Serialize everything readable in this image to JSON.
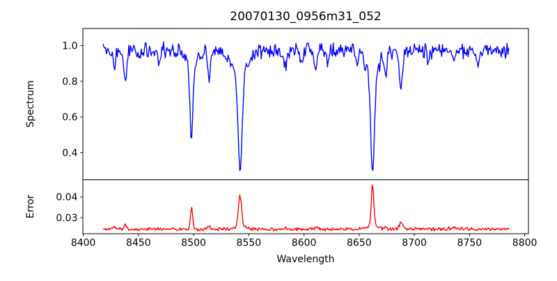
{
  "title": "20070130_0956m31_052",
  "colors": {
    "spectrum_line": "#0000ff",
    "error_line": "#ff0000",
    "axis": "#000000",
    "background": "#ffffff"
  },
  "chart_data": [
    {
      "type": "line",
      "name": "spectrum",
      "title": "20070130_0956m31_052",
      "xlabel": "Wavelength",
      "ylabel": "Spectrum",
      "color": "#0000ff",
      "grid": false,
      "legend": null,
      "xlim": [
        8399.6,
        8803.4
      ],
      "ylim": [
        0.248,
        1.095
      ],
      "xticks": [
        8400,
        8450,
        8500,
        8550,
        8600,
        8650,
        8700,
        8750,
        8800
      ],
      "xtick_labels": [
        "8400",
        "8450",
        "8500",
        "8550",
        "8600",
        "8650",
        "8700",
        "8750",
        "8800"
      ],
      "show_xtick_labels": false,
      "yticks": [
        0.4,
        0.6,
        0.8,
        1.0
      ],
      "ytick_labels": [
        "0.4",
        "0.6",
        "0.8",
        "1.0"
      ],
      "series_generator": {
        "x_start": 8418,
        "x_end": 8786,
        "x_step": 0.75,
        "seed": 3,
        "base_level": 0.97,
        "noise_amp": 0.055,
        "feature_sign": -1,
        "features": [
          {
            "center": 8428,
            "amplitude": 0.1,
            "sigma": 1.2
          },
          {
            "center": 8438,
            "amplitude": 0.17,
            "sigma": 1.3
          },
          {
            "center": 8451,
            "amplitude": 0.05,
            "sigma": 1.0
          },
          {
            "center": 8468,
            "amplitude": 0.08,
            "sigma": 1.2
          },
          {
            "center": 8498.02,
            "amplitude": 0.425,
            "sigma": 1.3
          },
          {
            "center": 8498.02,
            "amplitude": 0.075,
            "sigma": 5.0
          },
          {
            "center": 8514,
            "amplitude": 0.16,
            "sigma": 1.3
          },
          {
            "center": 8542.09,
            "amplitude": 0.55,
            "sigma": 1.8
          },
          {
            "center": 8542.09,
            "amplitude": 0.13,
            "sigma": 7.0
          },
          {
            "center": 8583,
            "amplitude": 0.1,
            "sigma": 1.2
          },
          {
            "center": 8598,
            "amplitude": 0.06,
            "sigma": 1.0
          },
          {
            "center": 8611,
            "amplitude": 0.1,
            "sigma": 1.2
          },
          {
            "center": 8621,
            "amplitude": 0.07,
            "sigma": 1.0
          },
          {
            "center": 8648,
            "amplitude": 0.06,
            "sigma": 1.0
          },
          {
            "center": 8662.14,
            "amplitude": 0.555,
            "sigma": 1.6
          },
          {
            "center": 8662.14,
            "amplitude": 0.13,
            "sigma": 6.0
          },
          {
            "center": 8674,
            "amplitude": 0.12,
            "sigma": 1.2
          },
          {
            "center": 8688,
            "amplitude": 0.2,
            "sigma": 1.6
          },
          {
            "center": 8713,
            "amplitude": 0.06,
            "sigma": 1.0
          },
          {
            "center": 8736,
            "amplitude": 0.08,
            "sigma": 1.2
          },
          {
            "center": 8757,
            "amplitude": 0.06,
            "sigma": 1.0
          }
        ]
      },
      "notable_values": {
        "data_x_start": 8418,
        "data_x_end": 8786,
        "continuum_level": 0.97,
        "absorption_line_minima": [
          {
            "wavelength": 8498,
            "flux": 0.47
          },
          {
            "wavelength": 8542,
            "flux": 0.3
          },
          {
            "wavelength": 8662,
            "flux": 0.29
          },
          {
            "wavelength": 8688,
            "flux": 0.75
          }
        ]
      }
    },
    {
      "type": "line",
      "name": "error",
      "xlabel": "Wavelength",
      "ylabel": "Error",
      "color": "#ff0000",
      "grid": false,
      "legend": null,
      "xlim": [
        8399.6,
        8803.4
      ],
      "ylim": [
        0.0223,
        0.0482
      ],
      "xticks": [
        8400,
        8450,
        8500,
        8550,
        8600,
        8650,
        8700,
        8750,
        8800
      ],
      "xtick_labels": [
        "8400",
        "8450",
        "8500",
        "8550",
        "8600",
        "8650",
        "8700",
        "8750",
        "8800"
      ],
      "show_xtick_labels": true,
      "yticks": [
        0.03,
        0.04
      ],
      "ytick_labels": [
        "0.03",
        "0.04"
      ],
      "series_generator": {
        "x_start": 8418,
        "x_end": 8786,
        "x_step": 0.75,
        "seed": 11,
        "base_level": 0.0245,
        "noise_amp": 0.001,
        "feature_sign": 1,
        "features": [
          {
            "center": 8428,
            "amplitude": 0.0013,
            "sigma": 1.2
          },
          {
            "center": 8438,
            "amplitude": 0.0018,
            "sigma": 1.2
          },
          {
            "center": 8498.02,
            "amplitude": 0.01,
            "sigma": 1.0
          },
          {
            "center": 8514,
            "amplitude": 0.0013,
            "sigma": 1.2
          },
          {
            "center": 8542.09,
            "amplitude": 0.0145,
            "sigma": 1.4
          },
          {
            "center": 8542.09,
            "amplitude": 0.0015,
            "sigma": 5.0
          },
          {
            "center": 8583,
            "amplitude": 0.0008,
            "sigma": 1.0
          },
          {
            "center": 8611,
            "amplitude": 0.0008,
            "sigma": 1.0
          },
          {
            "center": 8662.14,
            "amplitude": 0.0205,
            "sigma": 1.1
          },
          {
            "center": 8662.14,
            "amplitude": 0.0018,
            "sigma": 5.0
          },
          {
            "center": 8674,
            "amplitude": 0.001,
            "sigma": 1.0
          },
          {
            "center": 8688,
            "amplitude": 0.0035,
            "sigma": 1.5
          },
          {
            "center": 8736,
            "amplitude": 0.0009,
            "sigma": 1.0
          }
        ]
      },
      "notable_values": {
        "data_x_start": 8418,
        "data_x_end": 8786,
        "baseline_level": 0.0245,
        "error_peak_maxima": [
          {
            "wavelength": 8498,
            "error": 0.035
          },
          {
            "wavelength": 8542,
            "error": 0.0395
          },
          {
            "wavelength": 8662,
            "error": 0.0465
          },
          {
            "wavelength": 8688,
            "error": 0.0285
          }
        ]
      }
    }
  ]
}
